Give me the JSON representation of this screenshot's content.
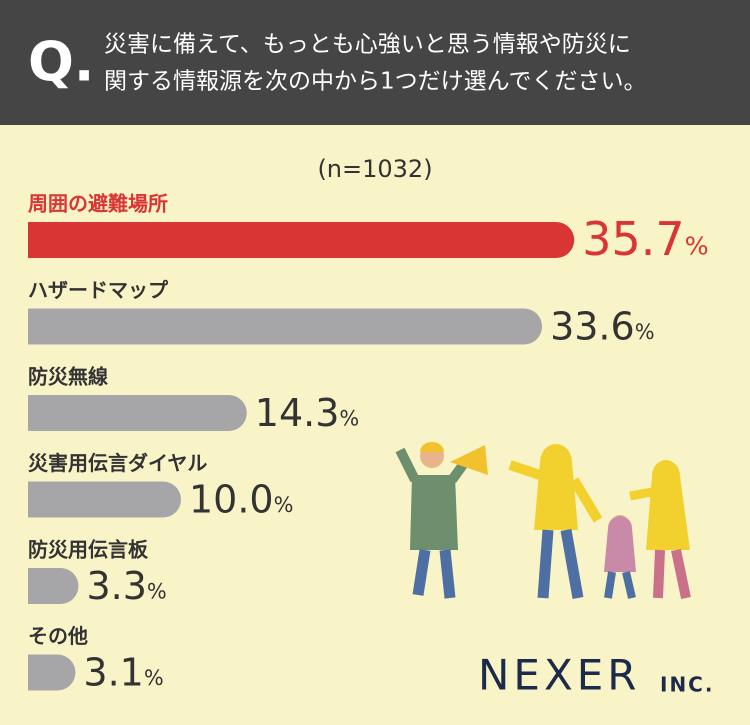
{
  "header": {
    "mark": "Q.",
    "question": [
      "災害に備えて、もっとも心強いと思う情報や防災に",
      "関する情報源を次の中から1つだけ選んでください。"
    ]
  },
  "chart_data": {
    "type": "bar",
    "orientation": "horizontal",
    "subtitle": "(n=1032)",
    "categories": [
      "周囲の避難場所",
      "ハザードマップ",
      "防災無線",
      "災害用伝言ダイヤル",
      "防災用伝言板",
      "その他"
    ],
    "values": [
      35.7,
      33.6,
      14.3,
      10.0,
      3.3,
      3.1
    ],
    "value_labels": [
      "35.7%",
      "33.6%",
      "14.3%",
      "10.0%",
      "3.3%",
      "3.1%"
    ],
    "colors": [
      "#d93535",
      "#a6a6a9",
      "#a6a6a9",
      "#a6a6a9",
      "#a6a6a9",
      "#a6a6a9"
    ],
    "label_colors": [
      "#d93535",
      "#333333",
      "#333333",
      "#333333",
      "#333333",
      "#333333"
    ]
  },
  "logo": {
    "name": "NEXER",
    "suffix": "INC."
  }
}
